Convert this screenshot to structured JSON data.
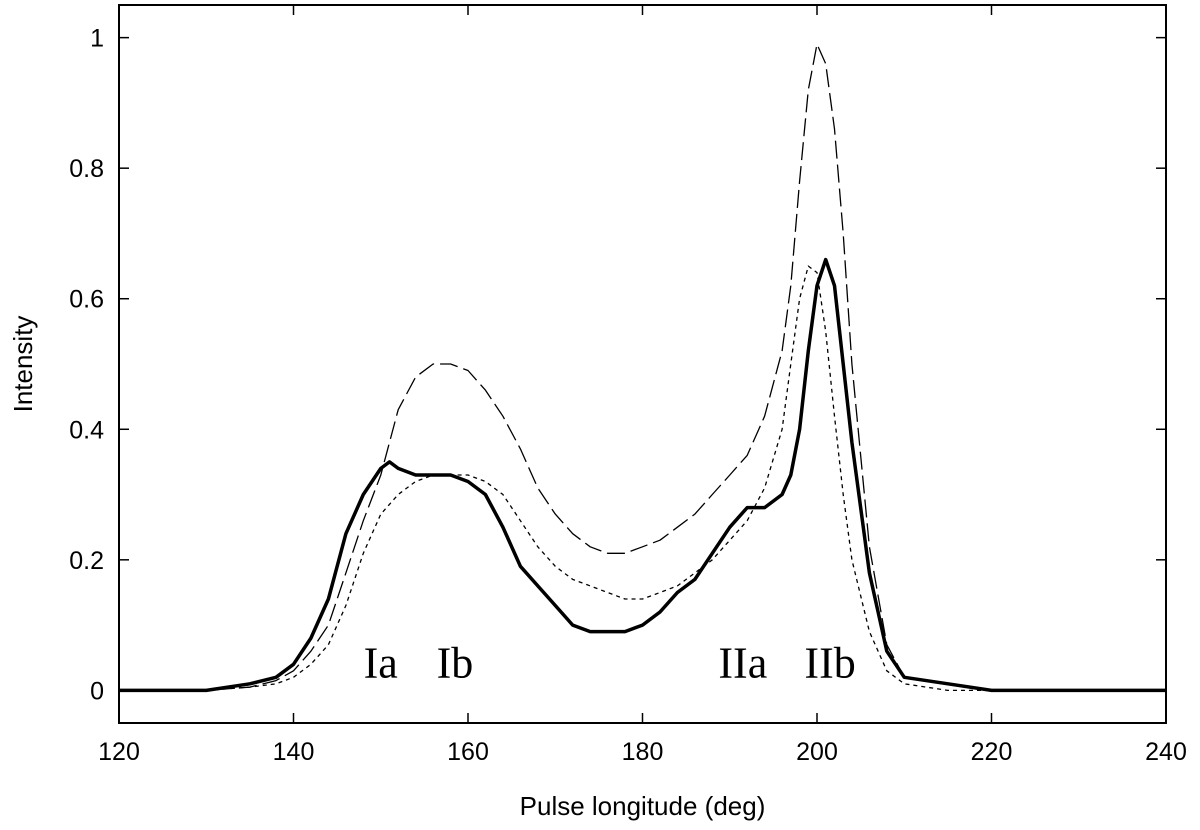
{
  "chart_data": {
    "type": "line",
    "title": "",
    "xlabel": "Pulse longitude (deg)",
    "ylabel": "Intensity",
    "xlim": [
      120,
      240
    ],
    "ylim": [
      -0.05,
      1.05
    ],
    "xticks": [
      120,
      140,
      160,
      180,
      200,
      220,
      240
    ],
    "yticks": [
      0,
      0.2,
      0.4,
      0.6,
      0.8,
      1
    ],
    "xtick_labels": [
      "120",
      "140",
      "160",
      "180",
      "200",
      "220",
      "240"
    ],
    "ytick_labels": [
      "0",
      "0.2",
      "0.4",
      "0.6",
      "0.8",
      "1"
    ],
    "grid": false,
    "legend": "none",
    "annotations": [
      {
        "text": "Ia",
        "x": 150,
        "y": 0.02
      },
      {
        "text": "Ib",
        "x": 158.5,
        "y": 0.02
      },
      {
        "text": "IIa",
        "x": 191.5,
        "y": 0.02
      },
      {
        "text": "IIb",
        "x": 201.5,
        "y": 0.02
      }
    ],
    "series": [
      {
        "style": "solid-thick",
        "color": "#000000",
        "x": [
          120,
          125,
          130,
          135,
          138,
          140,
          142,
          144,
          146,
          148,
          150,
          151,
          152,
          154,
          156,
          158,
          160,
          162,
          164,
          166,
          168,
          170,
          172,
          174,
          176,
          178,
          180,
          182,
          184,
          186,
          188,
          190,
          192,
          194,
          196,
          197,
          198,
          199,
          200,
          201,
          202,
          203,
          204,
          206,
          208,
          210,
          215,
          220,
          225,
          230,
          235,
          240
        ],
        "values": [
          0,
          0,
          0,
          0.01,
          0.02,
          0.04,
          0.08,
          0.14,
          0.24,
          0.3,
          0.34,
          0.35,
          0.34,
          0.33,
          0.33,
          0.33,
          0.32,
          0.3,
          0.25,
          0.19,
          0.16,
          0.13,
          0.1,
          0.09,
          0.09,
          0.09,
          0.1,
          0.12,
          0.15,
          0.17,
          0.21,
          0.25,
          0.28,
          0.28,
          0.3,
          0.33,
          0.4,
          0.52,
          0.62,
          0.66,
          0.62,
          0.5,
          0.38,
          0.18,
          0.06,
          0.02,
          0.01,
          0,
          0,
          0,
          0,
          0
        ]
      },
      {
        "style": "dashed",
        "color": "#000000",
        "x": [
          120,
          125,
          130,
          135,
          138,
          140,
          142,
          144,
          146,
          148,
          150,
          152,
          154,
          156,
          158,
          160,
          162,
          164,
          166,
          168,
          170,
          172,
          174,
          176,
          178,
          180,
          182,
          184,
          186,
          188,
          190,
          192,
          194,
          196,
          197,
          198,
          199,
          200,
          201,
          202,
          203,
          204,
          206,
          208,
          210,
          215,
          220,
          225,
          230,
          235,
          240
        ],
        "values": [
          0,
          0,
          0,
          0.005,
          0.015,
          0.03,
          0.06,
          0.1,
          0.18,
          0.26,
          0.33,
          0.43,
          0.48,
          0.5,
          0.5,
          0.49,
          0.46,
          0.42,
          0.37,
          0.31,
          0.27,
          0.24,
          0.22,
          0.21,
          0.21,
          0.22,
          0.23,
          0.25,
          0.27,
          0.3,
          0.33,
          0.36,
          0.42,
          0.52,
          0.62,
          0.78,
          0.92,
          0.99,
          0.96,
          0.86,
          0.7,
          0.5,
          0.22,
          0.07,
          0.02,
          0.01,
          0,
          0,
          0,
          0,
          0
        ]
      },
      {
        "style": "dotted",
        "color": "#000000",
        "x": [
          120,
          125,
          130,
          135,
          138,
          140,
          142,
          144,
          146,
          148,
          150,
          152,
          154,
          156,
          158,
          160,
          162,
          164,
          166,
          168,
          170,
          172,
          174,
          176,
          178,
          180,
          182,
          184,
          186,
          188,
          190,
          192,
          194,
          196,
          197,
          198,
          199,
          200,
          201,
          202,
          203,
          204,
          206,
          208,
          210,
          215,
          220,
          225,
          230,
          235,
          240
        ],
        "values": [
          0,
          0,
          0,
          0.005,
          0.01,
          0.02,
          0.04,
          0.07,
          0.13,
          0.21,
          0.27,
          0.3,
          0.32,
          0.33,
          0.33,
          0.33,
          0.32,
          0.3,
          0.26,
          0.22,
          0.19,
          0.17,
          0.16,
          0.15,
          0.14,
          0.14,
          0.15,
          0.16,
          0.18,
          0.2,
          0.23,
          0.26,
          0.31,
          0.4,
          0.5,
          0.6,
          0.65,
          0.64,
          0.55,
          0.42,
          0.3,
          0.2,
          0.09,
          0.03,
          0.01,
          0,
          0,
          0,
          0,
          0,
          0
        ]
      }
    ]
  }
}
